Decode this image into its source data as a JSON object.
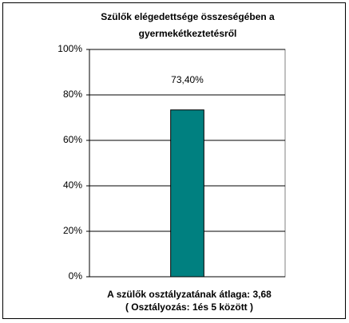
{
  "chart_data": {
    "type": "bar",
    "title": [
      "Szülők elégedettsége összeségében a",
      "gyermekétkeztetésről"
    ],
    "categories": [
      null
    ],
    "values": [
      73.4
    ],
    "value_labels": [
      "73,40%"
    ],
    "color": "#008080",
    "ylim": [
      0,
      100
    ],
    "yticks": [
      {
        "value": 0,
        "label": "0%"
      },
      {
        "value": 20,
        "label": "20%"
      },
      {
        "value": 40,
        "label": "40%"
      },
      {
        "value": 60,
        "label": "60%"
      },
      {
        "value": 80,
        "label": "80%"
      },
      {
        "value": 100,
        "label": "100%"
      }
    ],
    "grid": true,
    "annotations": [
      "A szülők osztályzatának átlaga: 3,68",
      "( Osztályozás: 1és 5 között )"
    ]
  }
}
